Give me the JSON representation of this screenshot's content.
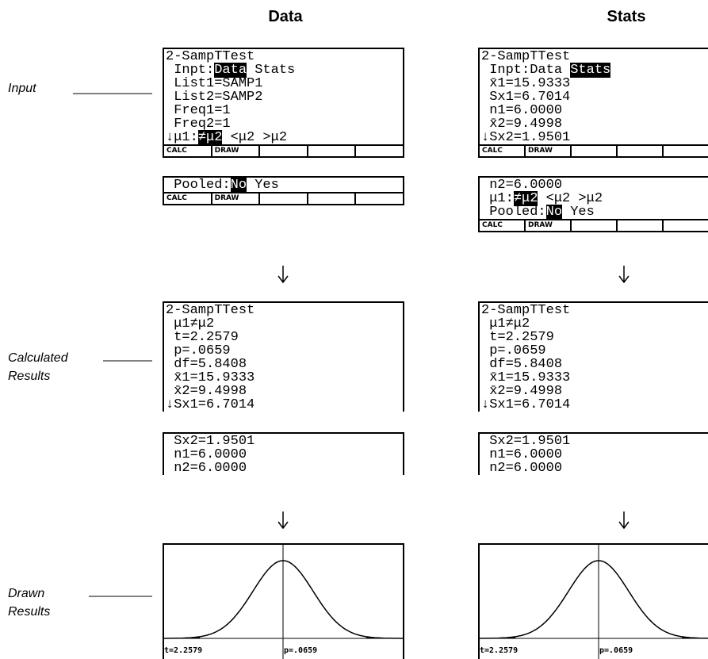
{
  "columns": [
    {
      "heading": "Data",
      "stages": [
        {
          "screens": [
            {
              "lines": [
                [
                  {
                    "text": "2-SampTTest"
                  }
                ],
                [
                  {
                    "text": " Inpt:"
                  },
                  {
                    "text": "Data",
                    "inverse": true
                  },
                  {
                    "text": " Stats"
                  }
                ],
                [
                  {
                    "text": " List1=SAMP1"
                  }
                ],
                [
                  {
                    "text": " List2=SAMP2"
                  }
                ],
                [
                  {
                    "text": " Freq1=1"
                  }
                ],
                [
                  {
                    "text": " Freq2=1"
                  }
                ],
                [
                  {
                    "text": "↓μ1:"
                  },
                  {
                    "text": "≠μ2",
                    "inverse": true
                  },
                  {
                    "text": " <μ2 >μ2"
                  }
                ]
              ],
              "menu": [
                "CALC",
                "DRAW"
              ]
            },
            {
              "lines": [
                [
                  {
                    "text": " Pooled:"
                  },
                  {
                    "text": "No",
                    "inverse": true
                  },
                  {
                    "text": " Yes"
                  }
                ]
              ],
              "menu": [
                "CALC",
                "DRAW"
              ]
            }
          ]
        },
        {
          "screens": [
            {
              "lines": [
                [
                  {
                    "text": "2-SampTTest"
                  }
                ],
                [
                  {
                    "text": " μ1≠μ2"
                  }
                ],
                [
                  {
                    "text": " t=2.2579"
                  }
                ],
                [
                  {
                    "text": " p=.0659"
                  }
                ],
                [
                  {
                    "text": " df=5.8408"
                  }
                ],
                [
                  {
                    "text": " x̄1=15.9333"
                  }
                ],
                [
                  {
                    "text": " x̄2=9.4998"
                  }
                ],
                [
                  {
                    "text": "↓Sx1=6.7014"
                  }
                ]
              ]
            },
            {
              "lines": [
                [
                  {
                    "text": " Sx2=1.9501"
                  }
                ],
                [
                  {
                    "text": " n1=6.0000"
                  }
                ],
                [
                  {
                    "text": " n2=6.0000"
                  }
                ]
              ]
            }
          ]
        },
        {
          "graph_labels": [
            "t=2.2579",
            "p=.0659"
          ]
        }
      ]
    },
    {
      "heading": "Stats",
      "stages": [
        {
          "screens": [
            {
              "lines": [
                [
                  {
                    "text": "2-SampTTest"
                  }
                ],
                [
                  {
                    "text": " Inpt:Data "
                  },
                  {
                    "text": "Stats",
                    "inverse": true
                  }
                ],
                [
                  {
                    "text": " x̄1=15.9333"
                  }
                ],
                [
                  {
                    "text": " Sx1=6.7014"
                  }
                ],
                [
                  {
                    "text": " n1=6.0000"
                  }
                ],
                [
                  {
                    "text": " x̄2=9.4998"
                  }
                ],
                [
                  {
                    "text": "↓Sx2=1.9501"
                  }
                ]
              ],
              "menu": [
                "CALC",
                "DRAW"
              ]
            },
            {
              "lines": [
                [
                  {
                    "text": " n2=6.0000"
                  }
                ],
                [
                  {
                    "text": " μ1:"
                  },
                  {
                    "text": "≠μ2",
                    "inverse": true
                  },
                  {
                    "text": " <μ2 >μ2"
                  }
                ],
                [
                  {
                    "text": " Pooled:"
                  },
                  {
                    "text": "No",
                    "inverse": true
                  },
                  {
                    "text": " Yes"
                  }
                ]
              ],
              "menu": [
                "CALC",
                "DRAW"
              ]
            }
          ]
        },
        {
          "screens": [
            {
              "lines": [
                [
                  {
                    "text": "2-SampTTest"
                  }
                ],
                [
                  {
                    "text": " μ1≠μ2"
                  }
                ],
                [
                  {
                    "text": " t=2.2579"
                  }
                ],
                [
                  {
                    "text": " p=.0659"
                  }
                ],
                [
                  {
                    "text": " df=5.8408"
                  }
                ],
                [
                  {
                    "text": " x̄1=15.9333"
                  }
                ],
                [
                  {
                    "text": " x̄2=9.4998"
                  }
                ],
                [
                  {
                    "text": "↓Sx1=6.7014"
                  }
                ]
              ]
            },
            {
              "lines": [
                [
                  {
                    "text": " Sx2=1.9501"
                  }
                ],
                [
                  {
                    "text": " n1=6.0000"
                  }
                ],
                [
                  {
                    "text": " n2=6.0000"
                  }
                ]
              ]
            }
          ]
        },
        {
          "graph_labels": [
            "t=2.2579",
            "p=.0659"
          ]
        }
      ]
    }
  ],
  "row_labels": [
    [
      "Input"
    ],
    [
      "Calculated",
      "Results"
    ],
    [
      "Drawn",
      "Results"
    ]
  ]
}
